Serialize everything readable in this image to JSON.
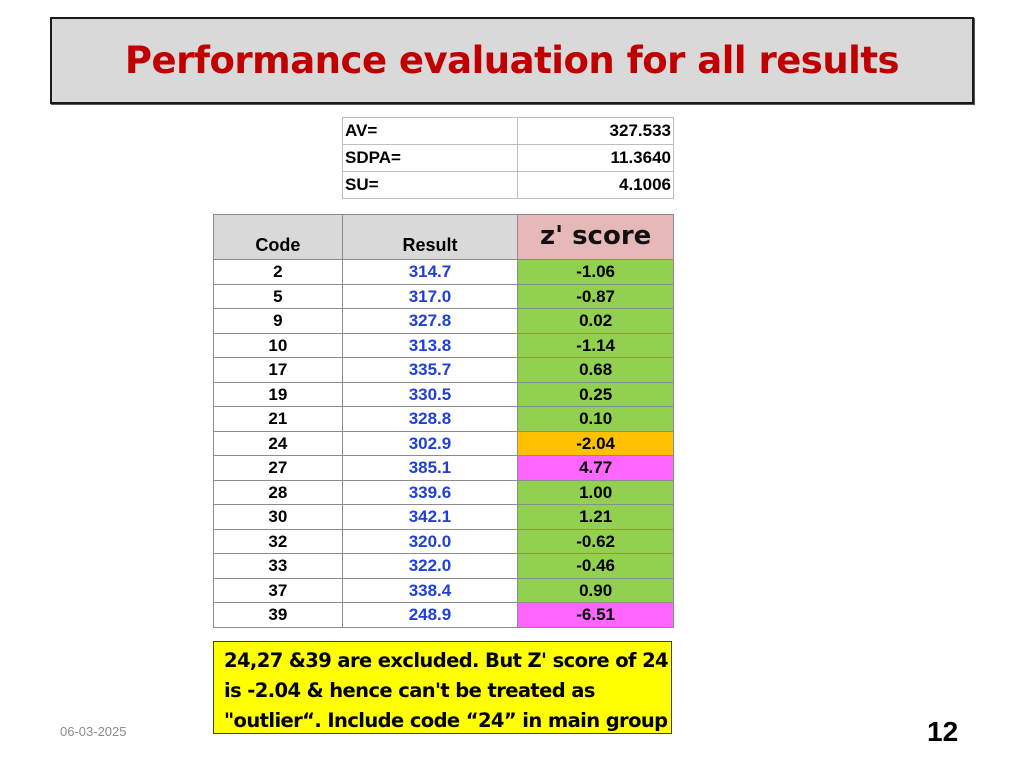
{
  "slide": {
    "title": "Performance evaluation for all results",
    "date": "06-03-2025",
    "page_number": "12"
  },
  "stats": [
    {
      "label": "AV=",
      "value": "327.533"
    },
    {
      "label": "SDPA=",
      "value": "11.3640"
    },
    {
      "label": "SU=",
      "value": "4.1006"
    }
  ],
  "table": {
    "headers": {
      "code": "Code",
      "result": "Result",
      "z": "z' score"
    },
    "rows": [
      {
        "code": "2",
        "result": "314.7",
        "z": "-1.06",
        "z_color": "#92d050"
      },
      {
        "code": "5",
        "result": "317.0",
        "z": "-0.87",
        "z_color": "#92d050"
      },
      {
        "code": "9",
        "result": "327.8",
        "z": "0.02",
        "z_color": "#92d050"
      },
      {
        "code": "10",
        "result": "313.8",
        "z": "-1.14",
        "z_color": "#92d050"
      },
      {
        "code": "17",
        "result": "335.7",
        "z": "0.68",
        "z_color": "#92d050"
      },
      {
        "code": "19",
        "result": "330.5",
        "z": "0.25",
        "z_color": "#92d050"
      },
      {
        "code": "21",
        "result": "328.8",
        "z": "0.10",
        "z_color": "#92d050"
      },
      {
        "code": "24",
        "result": "302.9",
        "z": "-2.04",
        "z_color": "#ffc000"
      },
      {
        "code": "27",
        "result": "385.1",
        "z": "4.77",
        "z_color": "#ff66ff"
      },
      {
        "code": "28",
        "result": "339.6",
        "z": "1.00",
        "z_color": "#92d050"
      },
      {
        "code": "30",
        "result": "342.1",
        "z": "1.21",
        "z_color": "#92d050"
      },
      {
        "code": "32",
        "result": "320.0",
        "z": "-0.62",
        "z_color": "#92d050"
      },
      {
        "code": "33",
        "result": "322.0",
        "z": "-0.46",
        "z_color": "#92d050"
      },
      {
        "code": "37",
        "result": "338.4",
        "z": "0.90",
        "z_color": "#92d050"
      },
      {
        "code": "39",
        "result": "248.9",
        "z": "-6.51",
        "z_color": "#ff66ff"
      }
    ]
  },
  "note": {
    "lines": [
      "24,27 &39 are excluded. But Z' score of 24",
      "is -2.04 & hence can't be treated as",
      "\"outlier“. Include code “24” in main group"
    ]
  }
}
